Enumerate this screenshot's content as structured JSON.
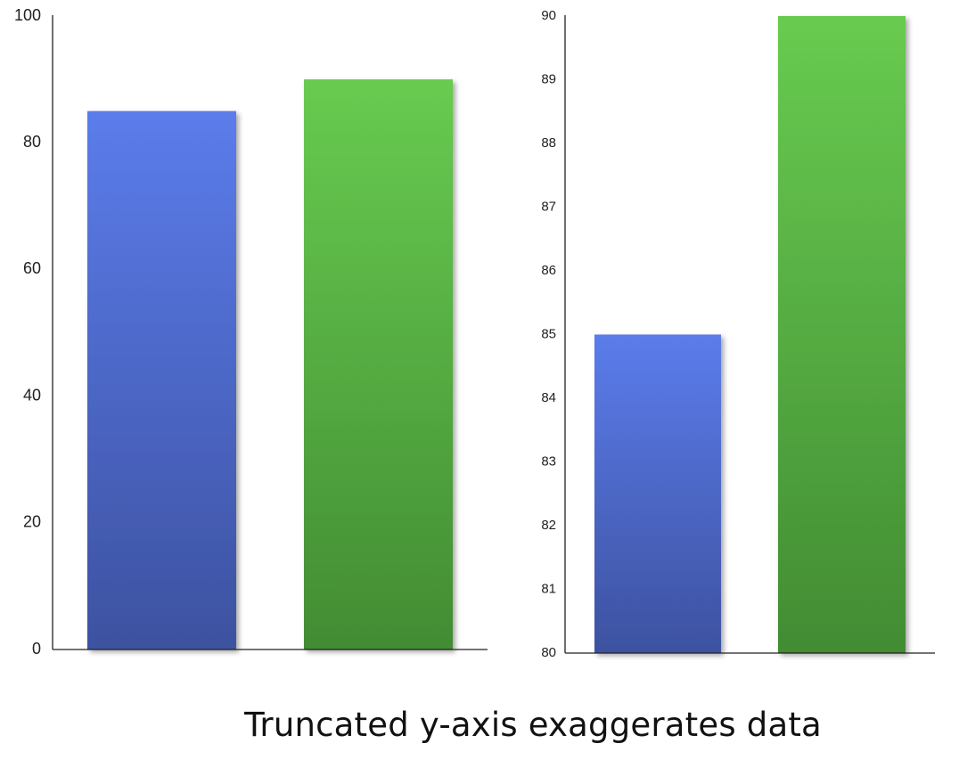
{
  "caption": "Truncated y-axis exaggerates data",
  "chart_data": [
    {
      "type": "bar",
      "categories": [
        "",
        ""
      ],
      "values": [
        85,
        90
      ],
      "colors": [
        "#5a7be8",
        "#66c84f"
      ],
      "ylim": [
        0,
        100
      ],
      "yticks": [
        0,
        20,
        40,
        60,
        80,
        100
      ],
      "title": "",
      "xlabel": "",
      "ylabel": "",
      "grid": false
    },
    {
      "type": "bar",
      "categories": [
        "",
        ""
      ],
      "values": [
        85,
        90
      ],
      "colors": [
        "#5a7be8",
        "#66c84f"
      ],
      "ylim": [
        80,
        90
      ],
      "yticks": [
        80,
        81,
        82,
        83,
        84,
        85,
        86,
        87,
        88,
        89,
        90
      ],
      "title": "",
      "xlabel": "",
      "ylabel": "",
      "grid": false
    }
  ]
}
